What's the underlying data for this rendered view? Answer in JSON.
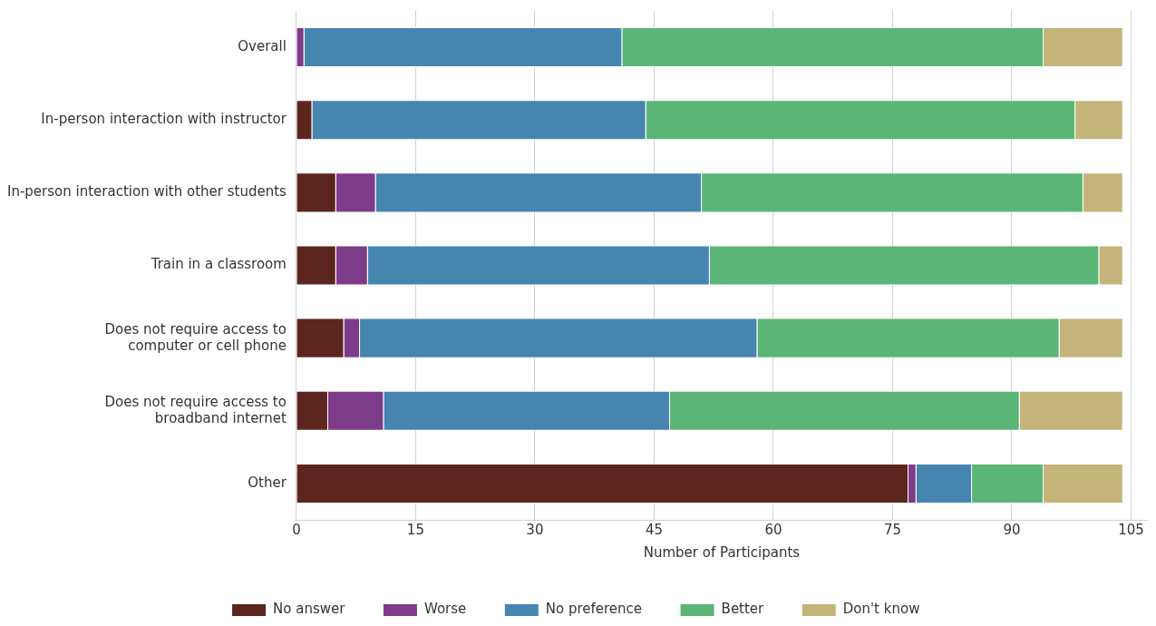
{
  "chart_data": {
    "type": "bar",
    "orientation": "horizontal",
    "stacked": true,
    "xlabel": "Number of Participants",
    "categories": [
      "Overall",
      "In-person interaction with instructor",
      "In-person interaction with other students",
      "Train in a classroom",
      "Does not require access to\ncomputer or cell phone",
      "Does not require access to\nbroadband internet",
      "Other"
    ],
    "series": [
      {
        "name": "No answer",
        "color": "#5c261f",
        "values": [
          0,
          2,
          5,
          5,
          6,
          4,
          77
        ]
      },
      {
        "name": "Worse",
        "color": "#7d3c8a",
        "values": [
          1,
          0,
          5,
          4,
          2,
          7,
          1
        ]
      },
      {
        "name": "No preference",
        "color": "#4685b0",
        "values": [
          40,
          42,
          41,
          43,
          50,
          36,
          7
        ]
      },
      {
        "name": "Better",
        "color": "#5bb577",
        "values": [
          53,
          54,
          48,
          49,
          38,
          44,
          9
        ]
      },
      {
        "name": "Don't know",
        "color": "#c4b47a",
        "values": [
          10,
          6,
          5,
          3,
          8,
          13,
          10
        ]
      }
    ],
    "xlim": [
      0,
      107
    ],
    "xticks": [
      0,
      15,
      30,
      45,
      60,
      75,
      90,
      105
    ],
    "grid": "x",
    "legend": "bottom"
  }
}
